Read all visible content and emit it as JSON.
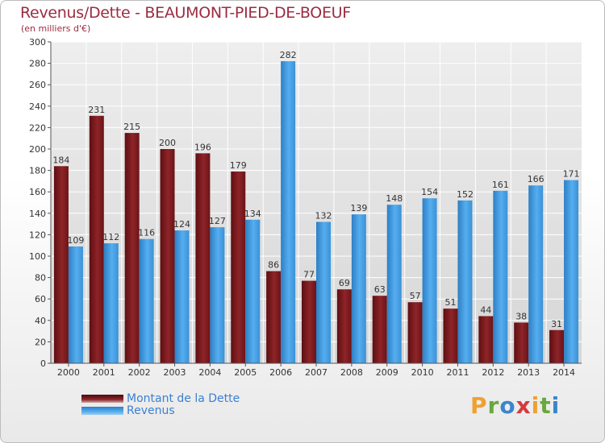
{
  "chart_data": {
    "type": "bar",
    "title": "Revenus/Dette - BEAUMONT-PIED-DE-BOEUF",
    "subtitle": "(en milliers d'€)",
    "categories": [
      "2000",
      "2001",
      "2002",
      "2003",
      "2004",
      "2005",
      "2006",
      "2007",
      "2008",
      "2009",
      "2010",
      "2011",
      "2012",
      "2013",
      "2014"
    ],
    "series": [
      {
        "name": "Montant de la Dette",
        "color": "#8b1f24",
        "values": [
          184,
          231,
          215,
          200,
          196,
          179,
          86,
          77,
          69,
          63,
          57,
          51,
          44,
          38,
          31
        ]
      },
      {
        "name": "Revenus",
        "color": "#3d98dc",
        "values": [
          109,
          112,
          116,
          124,
          127,
          134,
          282,
          132,
          139,
          148,
          154,
          152,
          161,
          166,
          171
        ]
      }
    ],
    "ylim": [
      0,
      300
    ],
    "yticks": [
      0,
      20,
      40,
      60,
      80,
      100,
      120,
      140,
      160,
      180,
      200,
      220,
      240,
      260,
      280,
      300
    ],
    "grid": true,
    "legend_position": "bottom-left"
  },
  "logo": {
    "parts": [
      "P",
      "r",
      "o",
      "x",
      "i",
      "t",
      "i"
    ]
  }
}
